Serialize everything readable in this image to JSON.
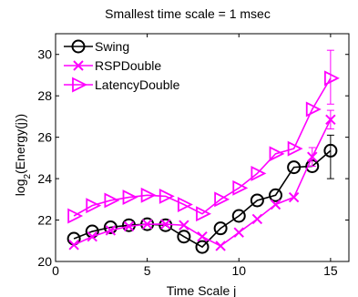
{
  "chart_data": {
    "type": "line",
    "title": "Smallest time scale = 1 msec",
    "xlabel": "Time Scale j",
    "ylabel": "log2(Energy(j))",
    "ylabel_main": "log",
    "ylabel_sub": "2",
    "ylabel_rest": "(Energy(j))",
    "xlim": [
      0,
      16
    ],
    "ylim": [
      20,
      31
    ],
    "xticks": [
      0,
      5,
      10,
      15
    ],
    "yticks": [
      20,
      22,
      24,
      26,
      28,
      30
    ],
    "grid": false,
    "legend_position": "top-left",
    "x": [
      1,
      2,
      3,
      4,
      5,
      6,
      7,
      8,
      9,
      10,
      11,
      12,
      13,
      14,
      15
    ],
    "series": [
      {
        "name": "Swing",
        "marker": "circle",
        "color": "#000000",
        "values": [
          21.1,
          21.45,
          21.65,
          21.75,
          21.8,
          21.75,
          21.2,
          20.7,
          21.6,
          22.2,
          22.95,
          23.2,
          24.55,
          24.6,
          25.35
        ],
        "error_bars": [
          {
            "x": 15,
            "low": 24.0,
            "high": 26.1
          }
        ]
      },
      {
        "name": "RSPDouble",
        "marker": "x",
        "color": "#ff00ff",
        "values": [
          20.8,
          21.2,
          21.5,
          21.7,
          21.8,
          21.8,
          21.75,
          21.2,
          20.75,
          21.4,
          22.05,
          22.75,
          23.1,
          25.05,
          26.85
        ],
        "error_bars": [
          {
            "x": 14,
            "low": 24.6,
            "high": 25.5
          },
          {
            "x": 15,
            "low": 26.4,
            "high": 27.3
          }
        ]
      },
      {
        "name": "LatencyDouble",
        "marker": "triangle-right",
        "color": "#ff00ff",
        "values": [
          22.2,
          22.7,
          22.95,
          23.1,
          23.2,
          23.15,
          22.75,
          22.3,
          23.0,
          23.55,
          24.25,
          25.2,
          25.45,
          27.35,
          28.85
        ],
        "error_bars": [
          {
            "x": 15,
            "low": 27.6,
            "high": 30.2
          }
        ]
      }
    ]
  }
}
